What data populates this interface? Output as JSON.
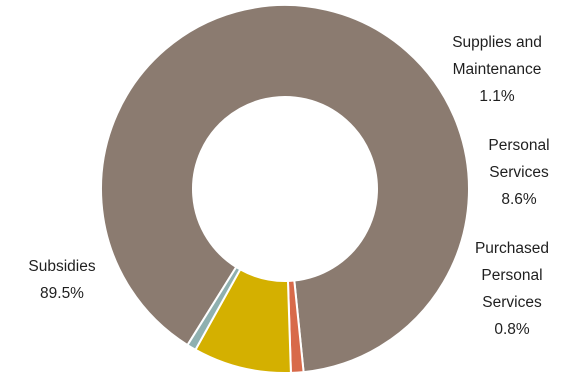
{
  "chart_data": {
    "type": "pie",
    "donut": true,
    "title": "",
    "series": [
      {
        "name": "",
        "slices": [
          {
            "label": "Subsidies",
            "value": 89.5,
            "display": "89.5%",
            "color": "#8b7b70"
          },
          {
            "label": "Supplies and Maintenance",
            "value": 1.1,
            "display": "1.1%",
            "color": "#d86a4a"
          },
          {
            "label": "Personal Services",
            "value": 8.6,
            "display": "8.6%",
            "color": "#d4b000"
          },
          {
            "label": "Purchased Personal Services",
            "value": 0.8,
            "display": "0.8%",
            "color": "#8fb0b0"
          }
        ]
      }
    ],
    "labels": {
      "subsidies": {
        "lines": [
          "Subsidies"
        ],
        "pct": "89.5%"
      },
      "supplies": {
        "lines": [
          "Supplies and",
          "Maintenance"
        ],
        "pct": "1.1%"
      },
      "personal": {
        "lines": [
          "Personal",
          "Services"
        ],
        "pct": "8.6%"
      },
      "purchased": {
        "lines": [
          "Purchased",
          "Personal",
          "Services"
        ],
        "pct": "0.8%"
      }
    },
    "legend": "none"
  }
}
